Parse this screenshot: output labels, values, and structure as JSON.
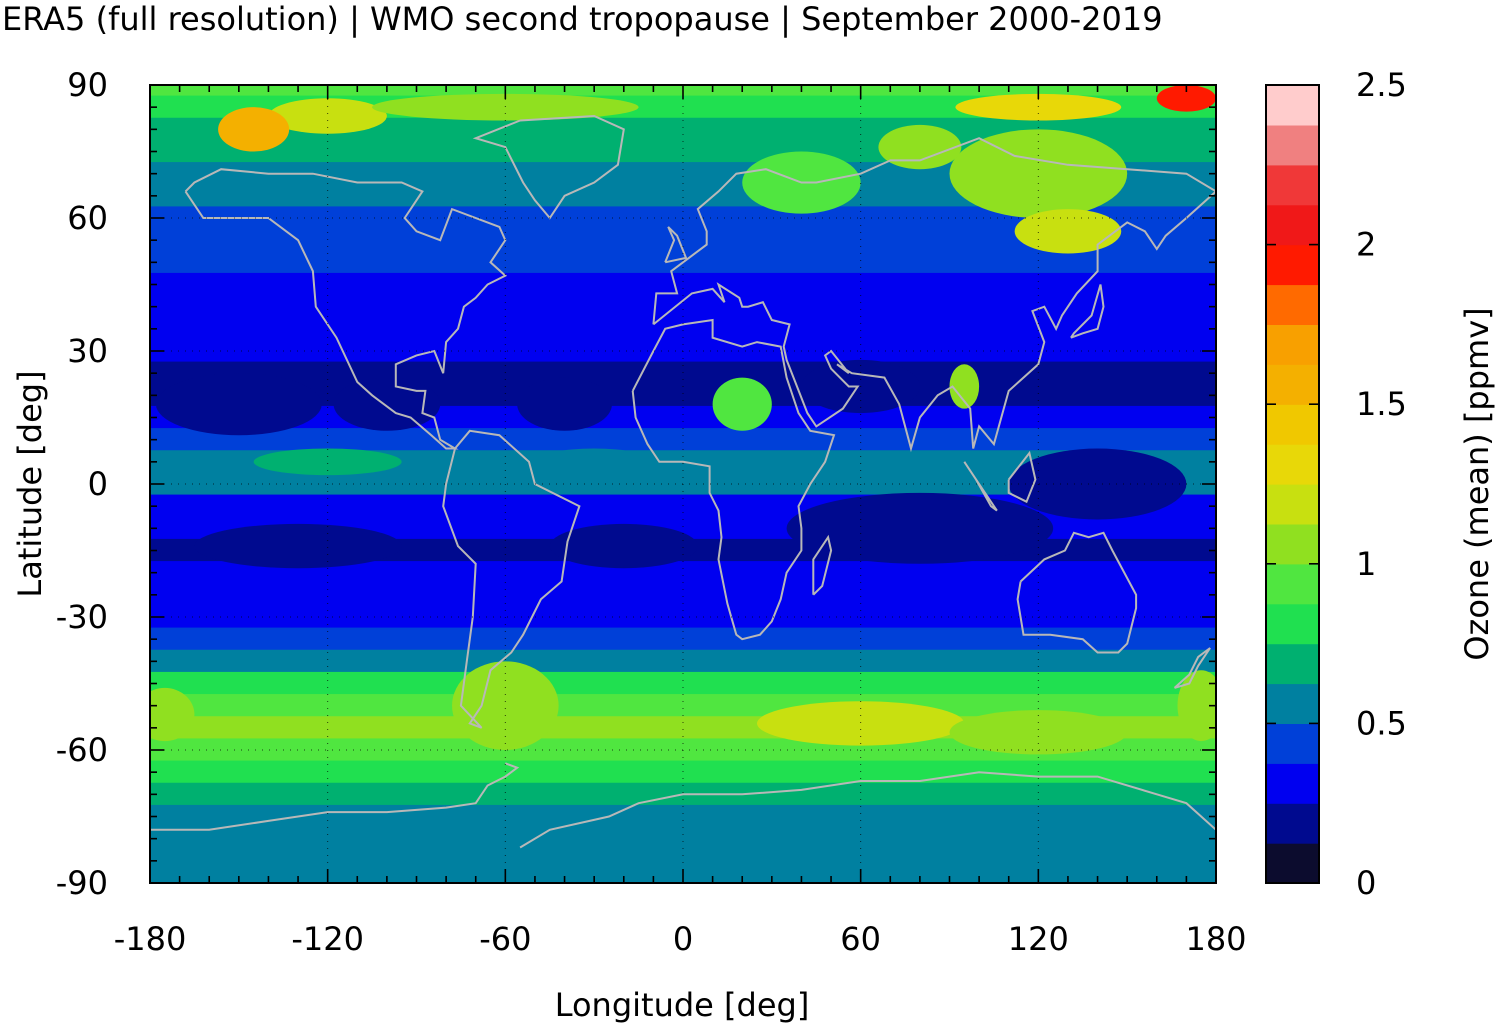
{
  "chart_data": {
    "type": "heatmap",
    "title": "ERA5 (full resolution) | WMO second tropopause | September 2000-2019",
    "xlabel": "Longitude [deg]",
    "ylabel": "Latitude [deg]",
    "xlim": [
      -180,
      180
    ],
    "ylim": [
      -90,
      90
    ],
    "xticks": [
      -180,
      -120,
      -60,
      0,
      60,
      120,
      180
    ],
    "yticks": [
      90,
      60,
      30,
      0,
      -30,
      -60,
      -90
    ],
    "grid": true,
    "colorbar": {
      "label": "Ozone (mean) [ppmv]",
      "range": [
        0,
        2.5
      ],
      "ticks": [
        0,
        0.5,
        1,
        1.5,
        2,
        2.5
      ],
      "tick_labels": [
        "0",
        "0.5",
        "1",
        "1.5",
        "2",
        "2.5"
      ],
      "colors": [
        "#0c0c2e",
        "#000a8f",
        "#0000f0",
        "#0040d8",
        "#0080a0",
        "#00b070",
        "#20e050",
        "#50e640",
        "#90e020",
        "#c8e010",
        "#e8d808",
        "#f0c800",
        "#f4b000",
        "#f8a000",
        "#ff6a00",
        "#ff1a00",
        "#f01818",
        "#f03838",
        "#f08080",
        "#ffcccc"
      ]
    },
    "zonal_mean_ozone_ppmv": {
      "lat": [
        90,
        85,
        80,
        75,
        70,
        65,
        60,
        55,
        50,
        45,
        40,
        35,
        30,
        25,
        20,
        15,
        10,
        5,
        0,
        -5,
        -10,
        -15,
        -20,
        -25,
        -30,
        -35,
        -40,
        -45,
        -50,
        -55,
        -60,
        -65,
        -70,
        -75,
        -80,
        -85,
        -90
      ],
      "value": [
        0.9,
        0.8,
        0.7,
        0.65,
        0.6,
        0.55,
        0.45,
        0.4,
        0.38,
        0.36,
        0.34,
        0.32,
        0.3,
        0.24,
        0.18,
        0.28,
        0.42,
        0.55,
        0.5,
        0.32,
        0.28,
        0.2,
        0.32,
        0.35,
        0.36,
        0.42,
        0.55,
        0.75,
        0.9,
        1.0,
        0.95,
        0.85,
        0.7,
        0.6,
        0.55,
        0.55,
        0.55
      ]
    }
  },
  "colors": {
    "coastline": "#b8b8b8",
    "gridline": "#000000",
    "frame": "#000000"
  }
}
